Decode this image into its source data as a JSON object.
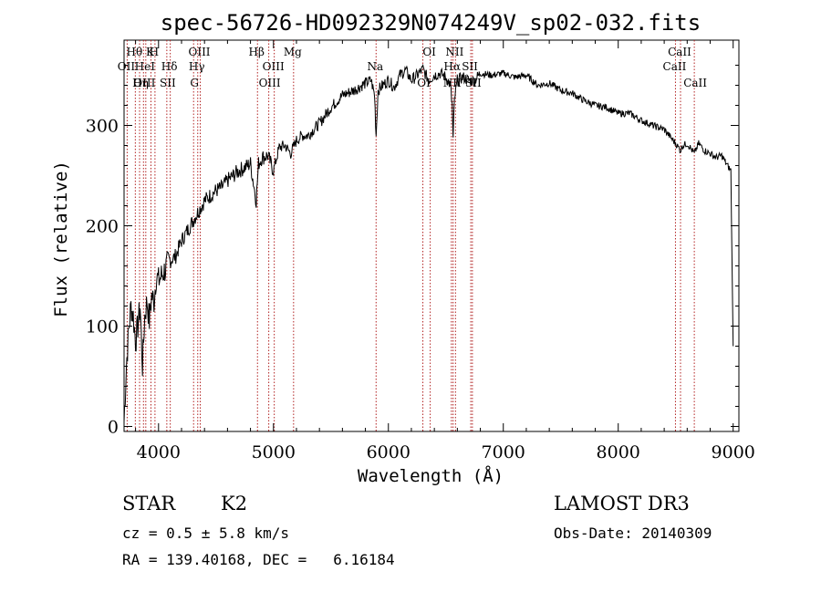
{
  "chart_data": {
    "type": "line",
    "title": "spec-56726-HD092329N074249V_sp02-032.fits",
    "xlabel": "Wavelength (Å)",
    "ylabel": "Flux (relative)",
    "xlim": [
      3700,
      9050
    ],
    "ylim": [
      -5,
      385
    ],
    "x_ticks": [
      4000,
      5000,
      6000,
      7000,
      8000,
      9000
    ],
    "y_ticks": [
      0,
      100,
      200,
      300
    ],
    "series": [
      {
        "name": "flux",
        "x": [
          3700,
          3720,
          3740,
          3760,
          3780,
          3800,
          3820,
          3840,
          3860,
          3880,
          3900,
          3920,
          3940,
          3960,
          3980,
          4000,
          4050,
          4100,
          4150,
          4200,
          4250,
          4300,
          4350,
          4400,
          4450,
          4500,
          4550,
          4600,
          4650,
          4700,
          4750,
          4800,
          4850,
          4870,
          4900,
          4950,
          5000,
          5050,
          5100,
          5150,
          5200,
          5250,
          5300,
          5400,
          5500,
          5600,
          5700,
          5800,
          5850,
          5880,
          5893,
          5910,
          5950,
          6000,
          6050,
          6100,
          6150,
          6200,
          6250,
          6300,
          6350,
          6400,
          6450,
          6500,
          6540,
          6555,
          6563,
          6575,
          6600,
          6650,
          6700,
          6750,
          6800,
          6900,
          7000,
          7100,
          7200,
          7300,
          7400,
          7500,
          7600,
          7700,
          7800,
          7900,
          8000,
          8100,
          8200,
          8300,
          8400,
          8500,
          8542,
          8560,
          8600,
          8662,
          8700,
          8750,
          8800,
          8850,
          8900,
          8950,
          8980,
          9000
        ],
        "values": [
          5,
          60,
          95,
          120,
          110,
          85,
          100,
          120,
          60,
          110,
          125,
          105,
          130,
          125,
          150,
          145,
          155,
          165,
          170,
          185,
          195,
          205,
          215,
          225,
          230,
          235,
          238,
          245,
          250,
          255,
          258,
          262,
          225,
          262,
          268,
          270,
          255,
          278,
          280,
          272,
          285,
          290,
          290,
          302,
          318,
          330,
          335,
          342,
          345,
          330,
          290,
          335,
          340,
          345,
          338,
          350,
          355,
          345,
          350,
          356,
          345,
          350,
          352,
          348,
          340,
          320,
          285,
          325,
          345,
          348,
          345,
          345,
          352,
          350,
          352,
          348,
          350,
          340,
          342,
          335,
          332,
          325,
          320,
          318,
          312,
          312,
          305,
          300,
          296,
          282,
          275,
          280,
          282,
          272,
          282,
          275,
          272,
          268,
          270,
          260,
          255,
          80
        ]
      }
    ],
    "emission_line_markers": [
      {
        "label": "Hθ",
        "x": 3798
      },
      {
        "label": "OII",
        "x": 3727
      },
      {
        "label": "OIII",
        "x": 3869
      },
      {
        "label": "K",
        "x": 3934
      },
      {
        "label": "HeI",
        "x": 3889
      },
      {
        "label": "Hη",
        "x": 3835
      },
      {
        "label": "H",
        "x": 3969
      },
      {
        "label": "Hδ",
        "x": 4102
      },
      {
        "label": "SII",
        "x": 4072
      },
      {
        "label": "OIII",
        "x": 4363
      },
      {
        "label": "Hγ",
        "x": 4341
      },
      {
        "label": "G",
        "x": 4305
      },
      {
        "label": "Hβ",
        "x": 4861
      },
      {
        "label": "OIII",
        "x": 5007
      },
      {
        "label": "OIII",
        "x": 4959
      },
      {
        "label": "Mg",
        "x": 5175
      },
      {
        "label": "Na",
        "x": 5893
      },
      {
        "label": "OI",
        "x": 6300
      },
      {
        "label": "OI",
        "x": 6364
      },
      {
        "label": "Hα",
        "x": 6563
      },
      {
        "label": "NII",
        "x": 6548
      },
      {
        "label": "NII",
        "x": 6584
      },
      {
        "label": "SII",
        "x": 6717
      },
      {
        "label": "SII",
        "x": 6731
      },
      {
        "label": "CaII",
        "x": 8542
      },
      {
        "label": "CaII",
        "x": 8498
      },
      {
        "label": "CaII",
        "x": 8662
      }
    ]
  },
  "info": {
    "object_class": "STAR",
    "subclass": "K2",
    "survey": "LAMOST DR3",
    "cz": "cz = 0.5 ± 5.8 km/s",
    "obs_date": "Obs-Date: 20140309",
    "coords": "RA = 139.40168, DEC =   6.16184"
  }
}
